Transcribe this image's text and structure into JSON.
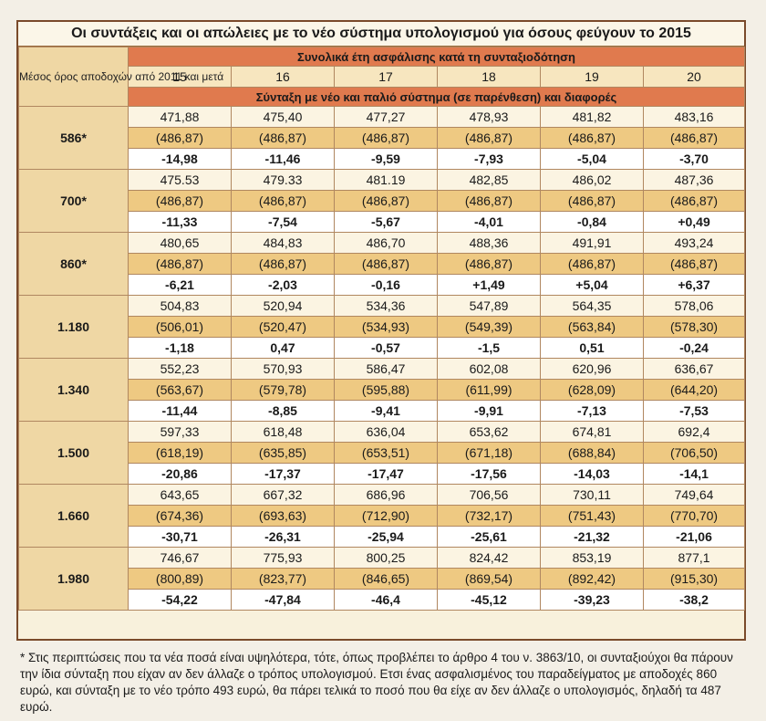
{
  "title": "Οι συντάξεις και οι απώλειες με το νέο σύστημα υπολογισμού για όσους φεύγουν το 2015",
  "header": {
    "left_label": "Μέσος όρος αποδοχών από 2011 και μετά",
    "years_label": "Συνολικά έτη ασφάλισης κατά τη συνταξιοδότηση",
    "years": [
      "15",
      "16",
      "17",
      "18",
      "19",
      "20"
    ],
    "subheader": "Σύνταξη με νέο και παλιό σύστημα (σε παρένθεση) και διαφορές"
  },
  "rows": [
    {
      "salary": "586*",
      "new": [
        "471,88",
        "475,40",
        "477,27",
        "478,93",
        "481,82",
        "483,16"
      ],
      "old": [
        "(486,87)",
        "(486,87)",
        "(486,87)",
        "(486,87)",
        "(486,87)",
        "(486,87)"
      ],
      "diff": [
        "-14,98",
        "-11,46",
        "-9,59",
        "-7,93",
        "-5,04",
        "-3,70"
      ]
    },
    {
      "salary": "700*",
      "new": [
        "475.53",
        "479.33",
        "481.19",
        "482,85",
        "486,02",
        "487,36"
      ],
      "old": [
        "(486,87)",
        "(486,87)",
        "(486,87)",
        "(486,87)",
        "(486,87)",
        "(486,87)"
      ],
      "diff": [
        "-11,33",
        "-7,54",
        "-5,67",
        "-4,01",
        "-0,84",
        "+0,49"
      ]
    },
    {
      "salary": "860*",
      "new": [
        "480,65",
        "484,83",
        "486,70",
        "488,36",
        "491,91",
        "493,24"
      ],
      "old": [
        "(486,87)",
        "(486,87)",
        "(486,87)",
        "(486,87)",
        "(486,87)",
        "(486,87)"
      ],
      "diff": [
        "-6,21",
        "-2,03",
        "-0,16",
        "+1,49",
        "+5,04",
        "+6,37"
      ]
    },
    {
      "salary": "1.180",
      "new": [
        "504,83",
        "520,94",
        "534,36",
        "547,89",
        "564,35",
        "578,06"
      ],
      "old": [
        "(506,01)",
        "(520,47)",
        "(534,93)",
        "(549,39)",
        "(563,84)",
        "(578,30)"
      ],
      "diff": [
        "-1,18",
        "0,47",
        "-0,57",
        "-1,5",
        "0,51",
        "-0,24"
      ]
    },
    {
      "salary": "1.340",
      "new": [
        "552,23",
        "570,93",
        "586,47",
        "602,08",
        "620,96",
        "636,67"
      ],
      "old": [
        "(563,67)",
        "(579,78)",
        "(595,88)",
        "(611,99)",
        "(628,09)",
        "(644,20)"
      ],
      "diff": [
        "-11,44",
        "-8,85",
        "-9,41",
        "-9,91",
        "-7,13",
        "-7,53"
      ]
    },
    {
      "salary": "1.500",
      "new": [
        "597,33",
        "618,48",
        "636,04",
        "653,62",
        "674,81",
        "692,4"
      ],
      "old": [
        "(618,19)",
        "(635,85)",
        "(653,51)",
        "(671,18)",
        "(688,84)",
        "(706,50)"
      ],
      "diff": [
        "-20,86",
        "-17,37",
        "-17,47",
        "-17,56",
        "-14,03",
        "-14,1"
      ]
    },
    {
      "salary": "1.660",
      "new": [
        "643,65",
        "667,32",
        "686,96",
        "706,56",
        "730,11",
        "749,64"
      ],
      "old": [
        "(674,36)",
        "(693,63)",
        "(712,90)",
        "(732,17)",
        "(751,43)",
        "(770,70)"
      ],
      "diff": [
        "-30,71",
        "-26,31",
        "-25,94",
        "-25,61",
        "-21,32",
        "-21,06"
      ]
    },
    {
      "salary": "1.980",
      "new": [
        "746,67",
        "775,93",
        "800,25",
        "824,42",
        "853,19",
        "877,1"
      ],
      "old": [
        "(800,89)",
        "(823,77)",
        "(846,65)",
        "(869,54)",
        "(892,42)",
        "(915,30)"
      ],
      "diff": [
        "-54,22",
        "-47,84",
        "-46,4",
        "-45,12",
        "-39,23",
        "-38,2"
      ]
    }
  ],
  "footnote": "* Στις περιπτώσεις που τα νέα ποσά είναι υψηλότερα, τότε, όπως προβλέπει το άρθρο 4 του ν. 3863/10, οι συνταξιούχοι θα πάρουν την ίδια σύνταξη που είχαν αν δεν άλλαζε ο τρόπος υπολογισμού. Ετσι ένας ασφαλισμένος του παραδείγματος με αποδοχές 860 ευρώ, και σύνταξη με το νέο τρόπο 493 ευρώ, θα πάρει τελικά το ποσό που θα είχε αν δεν άλλαζε ο υπολογισμός, δηλαδή τα 487 ευρώ."
}
